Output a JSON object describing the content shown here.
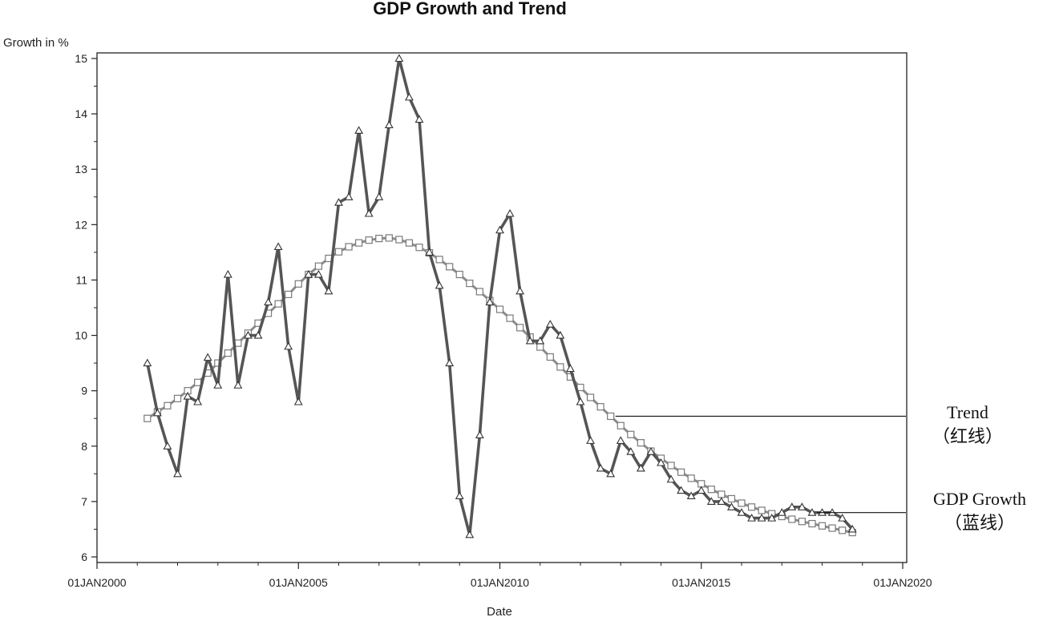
{
  "chart_data": {
    "type": "line",
    "title": "GDP Growth and Trend",
    "xlabel": "Date",
    "ylabel": "Growth in %",
    "xlim": [
      2000,
      2020
    ],
    "ylim": [
      6,
      15
    ],
    "x_ticks": [
      {
        "value": 2000,
        "label": "01JAN2000"
      },
      {
        "value": 2005,
        "label": "01JAN2005"
      },
      {
        "value": 2010,
        "label": "01JAN2010"
      },
      {
        "value": 2015,
        "label": "01JAN2015"
      },
      {
        "value": 2020,
        "label": "01JAN2020"
      }
    ],
    "y_ticks": [
      6,
      7,
      8,
      9,
      10,
      11,
      12,
      13,
      14,
      15
    ],
    "grid": false,
    "series": [
      {
        "name": "GDP Growth",
        "marker": "triangle",
        "color": "#555555",
        "x": [
          2001.25,
          2001.5,
          2001.75,
          2002.0,
          2002.25,
          2002.5,
          2002.75,
          2003.0,
          2003.25,
          2003.5,
          2003.75,
          2004.0,
          2004.25,
          2004.5,
          2004.75,
          2005.0,
          2005.25,
          2005.5,
          2005.75,
          2006.0,
          2006.25,
          2006.5,
          2006.75,
          2007.0,
          2007.25,
          2007.5,
          2007.75,
          2008.0,
          2008.25,
          2008.5,
          2008.75,
          2009.0,
          2009.25,
          2009.5,
          2009.75,
          2010.0,
          2010.25,
          2010.5,
          2010.75,
          2011.0,
          2011.25,
          2011.5,
          2011.75,
          2012.0,
          2012.25,
          2012.5,
          2012.75,
          2013.0,
          2013.25,
          2013.5,
          2013.75,
          2014.0,
          2014.25,
          2014.5,
          2014.75,
          2015.0,
          2015.25,
          2015.5,
          2015.75,
          2016.0,
          2016.25,
          2016.5,
          2016.75,
          2017.0,
          2017.25,
          2017.5,
          2017.75,
          2018.0,
          2018.25,
          2018.5,
          2018.75
        ],
        "values": [
          9.5,
          8.6,
          8.0,
          7.5,
          8.9,
          8.8,
          9.6,
          9.1,
          11.1,
          9.1,
          10.0,
          10.0,
          10.6,
          11.6,
          9.8,
          8.8,
          11.1,
          11.1,
          10.8,
          12.4,
          12.5,
          13.7,
          12.2,
          12.5,
          13.8,
          15.0,
          14.3,
          13.9,
          11.5,
          10.9,
          9.5,
          7.1,
          6.4,
          8.2,
          10.6,
          11.9,
          12.2,
          10.8,
          9.9,
          9.9,
          10.2,
          10.0,
          9.4,
          8.8,
          8.1,
          7.6,
          7.5,
          8.1,
          7.9,
          7.6,
          7.9,
          7.7,
          7.4,
          7.2,
          7.1,
          7.2,
          7.0,
          7.0,
          6.9,
          6.8,
          6.7,
          6.7,
          6.7,
          6.8,
          6.9,
          6.9,
          6.8,
          6.8,
          6.8,
          6.7,
          6.5
        ]
      },
      {
        "name": "Trend",
        "marker": "square",
        "color": "#8c8c8c",
        "x": [
          2001.25,
          2001.5,
          2001.75,
          2002.0,
          2002.25,
          2002.5,
          2002.75,
          2003.0,
          2003.25,
          2003.5,
          2003.75,
          2004.0,
          2004.25,
          2004.5,
          2004.75,
          2005.0,
          2005.25,
          2005.5,
          2005.75,
          2006.0,
          2006.25,
          2006.5,
          2006.75,
          2007.0,
          2007.25,
          2007.5,
          2007.75,
          2008.0,
          2008.25,
          2008.5,
          2008.75,
          2009.0,
          2009.25,
          2009.5,
          2009.75,
          2010.0,
          2010.25,
          2010.5,
          2010.75,
          2011.0,
          2011.25,
          2011.5,
          2011.75,
          2012.0,
          2012.25,
          2012.5,
          2012.75,
          2013.0,
          2013.25,
          2013.5,
          2013.75,
          2014.0,
          2014.25,
          2014.5,
          2014.75,
          2015.0,
          2015.25,
          2015.5,
          2015.75,
          2016.0,
          2016.25,
          2016.5,
          2016.75,
          2017.0,
          2017.25,
          2017.5,
          2017.75,
          2018.0,
          2018.25,
          2018.5,
          2018.75
        ],
        "values": [
          8.5,
          8.62,
          8.73,
          8.86,
          9.0,
          9.15,
          9.32,
          9.5,
          9.68,
          9.86,
          10.04,
          10.22,
          10.4,
          10.57,
          10.74,
          10.93,
          11.1,
          11.25,
          11.39,
          11.51,
          11.6,
          11.67,
          11.72,
          11.75,
          11.76,
          11.73,
          11.67,
          11.59,
          11.49,
          11.37,
          11.24,
          11.1,
          10.94,
          10.79,
          10.63,
          10.47,
          10.31,
          10.14,
          9.97,
          9.79,
          9.61,
          9.43,
          9.25,
          9.06,
          8.88,
          8.71,
          8.54,
          8.37,
          8.21,
          8.06,
          7.91,
          7.78,
          7.65,
          7.53,
          7.42,
          7.32,
          7.22,
          7.13,
          7.05,
          6.97,
          6.9,
          6.84,
          6.78,
          6.73,
          6.68,
          6.64,
          6.6,
          6.56,
          6.52,
          6.48,
          6.44
        ]
      }
    ],
    "annotations": [
      {
        "series": "Trend",
        "lines": [
          "Trend",
          "（红线）"
        ]
      },
      {
        "series": "GDP Growth",
        "lines": [
          "GDP Growth",
          "（蓝线）"
        ]
      }
    ]
  }
}
